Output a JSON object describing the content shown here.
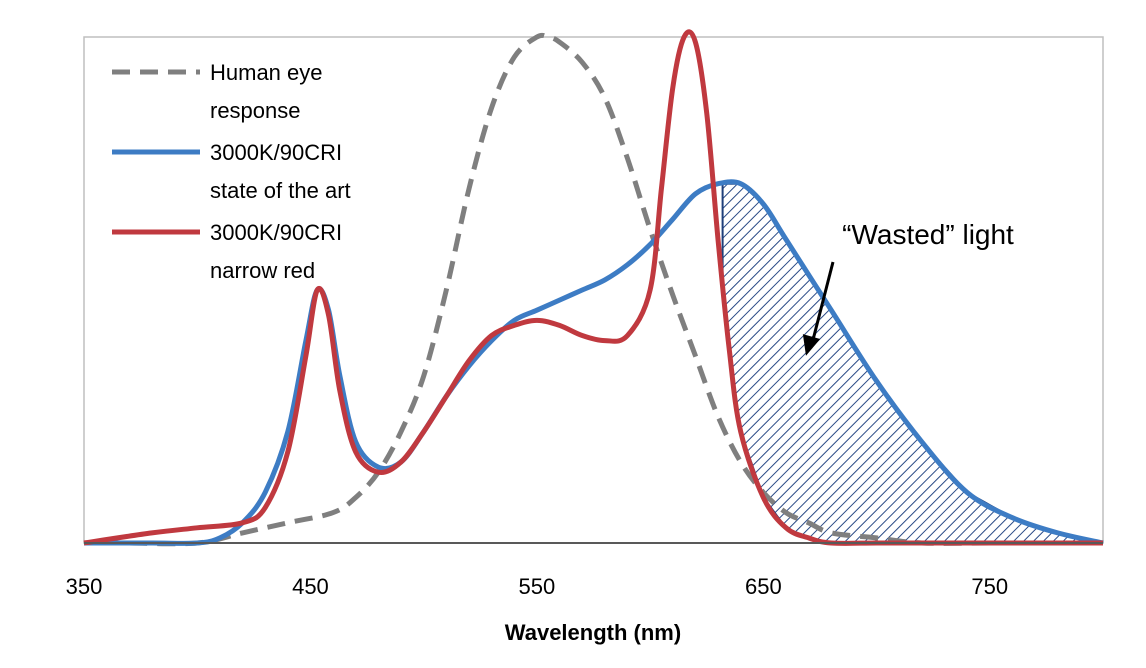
{
  "chart_data": {
    "type": "line",
    "title": "",
    "xlabel": "Wavelength (nm)",
    "ylabel": "",
    "xlim": [
      350,
      800
    ],
    "ylim": [
      0,
      1
    ],
    "xticks": [
      350,
      450,
      550,
      650,
      750
    ],
    "grid": false,
    "legend_position": "top-left",
    "series": [
      {
        "name": "Human eye response",
        "color": "#7f7f7f",
        "dash": "dashed",
        "x": [
          370,
          400,
          420,
          440,
          460,
          470,
          480,
          490,
          500,
          510,
          520,
          530,
          540,
          550,
          555,
          560,
          570,
          580,
          590,
          600,
          610,
          620,
          630,
          640,
          650,
          660,
          670,
          680,
          700,
          720,
          750,
          780
        ],
        "y": [
          0.0,
          0.0,
          0.02,
          0.04,
          0.06,
          0.09,
          0.14,
          0.22,
          0.33,
          0.5,
          0.7,
          0.86,
          0.96,
          1.0,
          1.0,
          0.99,
          0.95,
          0.88,
          0.76,
          0.62,
          0.49,
          0.37,
          0.25,
          0.16,
          0.1,
          0.06,
          0.04,
          0.02,
          0.01,
          0.0,
          0.0,
          0.0
        ]
      },
      {
        "name": "3000K/90CRI state of the art",
        "color": "#3d7cc4",
        "dash": "solid",
        "x": [
          350,
          380,
          400,
          410,
          420,
          430,
          440,
          448,
          453,
          458,
          463,
          470,
          480,
          490,
          500,
          510,
          520,
          530,
          540,
          550,
          560,
          570,
          580,
          590,
          600,
          610,
          620,
          630,
          640,
          650,
          660,
          680,
          700,
          720,
          740,
          760,
          780,
          800
        ],
        "y": [
          0.0,
          0.0,
          0.0,
          0.01,
          0.04,
          0.1,
          0.22,
          0.4,
          0.5,
          0.46,
          0.33,
          0.2,
          0.15,
          0.16,
          0.22,
          0.29,
          0.35,
          0.4,
          0.44,
          0.46,
          0.48,
          0.5,
          0.52,
          0.55,
          0.59,
          0.64,
          0.69,
          0.71,
          0.71,
          0.67,
          0.6,
          0.46,
          0.32,
          0.2,
          0.1,
          0.05,
          0.02,
          0.0
        ]
      },
      {
        "name": "3000K/90CRI narrow red",
        "color": "#c0393f",
        "dash": "solid",
        "x": [
          350,
          380,
          400,
          420,
          430,
          440,
          448,
          453,
          458,
          463,
          470,
          480,
          490,
          500,
          510,
          520,
          530,
          540,
          550,
          560,
          570,
          580,
          590,
          600,
          605,
          610,
          615,
          620,
          625,
          630,
          635,
          640,
          650,
          660,
          670,
          680,
          700,
          720,
          750,
          800
        ],
        "y": [
          0.0,
          0.02,
          0.03,
          0.04,
          0.07,
          0.18,
          0.37,
          0.5,
          0.45,
          0.3,
          0.18,
          0.14,
          0.16,
          0.22,
          0.29,
          0.36,
          0.41,
          0.43,
          0.44,
          0.43,
          0.41,
          0.4,
          0.41,
          0.5,
          0.7,
          0.9,
          1.0,
          0.99,
          0.85,
          0.6,
          0.38,
          0.22,
          0.09,
          0.03,
          0.01,
          0.0,
          0.0,
          0.0,
          0.0,
          0.0
        ]
      }
    ],
    "annotations": [
      {
        "text": "“Wasted” light",
        "target_x": 660,
        "target_y": 0.37
      }
    ]
  }
}
